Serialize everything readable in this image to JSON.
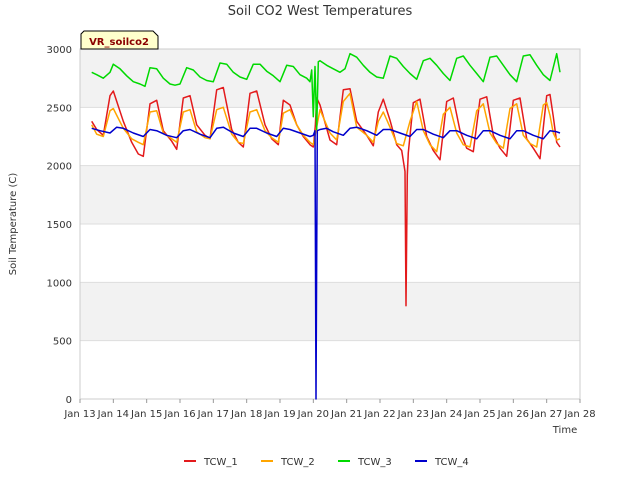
{
  "chart_data": {
    "type": "line",
    "title": "Soil CO2 West Temperatures",
    "xlabel": "Time",
    "ylabel": "Soil Temperature (C)",
    "badge": "VR_soilco2",
    "xlim": [
      13,
      28
    ],
    "ylim": [
      0,
      3000
    ],
    "y_ticks": [
      0,
      500,
      1000,
      1500,
      2000,
      2500,
      3000
    ],
    "x_ticks": [
      {
        "v": 13,
        "label": "Jan 13"
      },
      {
        "v": 14,
        "label": "Jan 14"
      },
      {
        "v": 15,
        "label": "Jan 15"
      },
      {
        "v": 16,
        "label": "Jan 16"
      },
      {
        "v": 17,
        "label": "Jan 17"
      },
      {
        "v": 18,
        "label": "Jan 18"
      },
      {
        "v": 19,
        "label": "Jan 19"
      },
      {
        "v": 20,
        "label": "Jan 20"
      },
      {
        "v": 21,
        "label": "Jan 21"
      },
      {
        "v": 22,
        "label": "Jan 22"
      },
      {
        "v": 23,
        "label": "Jan 23"
      },
      {
        "v": 24,
        "label": "Jan 24"
      },
      {
        "v": 25,
        "label": "Jan 25"
      },
      {
        "v": 26,
        "label": "Jan 26"
      },
      {
        "v": 27,
        "label": "Jan 27"
      },
      {
        "v": 28,
        "label": "Jan 28"
      }
    ],
    "grid": true,
    "legend_position": "bottom",
    "series": [
      {
        "name": "TCW_1",
        "color": "#e31a1c",
        "x": [
          13.35,
          13.5,
          13.7,
          13.9,
          14.0,
          14.3,
          14.55,
          14.75,
          14.9,
          15.1,
          15.3,
          15.5,
          15.75,
          15.9,
          16.1,
          16.3,
          16.5,
          16.75,
          16.9,
          17.1,
          17.3,
          17.55,
          17.75,
          17.9,
          18.1,
          18.3,
          18.55,
          18.75,
          18.95,
          19.1,
          19.3,
          19.5,
          19.7,
          19.9,
          20.0,
          20.06,
          20.1,
          20.2,
          20.5,
          20.7,
          20.9,
          21.1,
          21.3,
          21.6,
          21.8,
          21.95,
          22.1,
          22.3,
          22.5,
          22.65,
          22.75,
          22.78,
          22.82,
          22.85,
          23.0,
          23.2,
          23.4,
          23.6,
          23.8,
          24.0,
          24.2,
          24.4,
          24.6,
          24.8,
          25.0,
          25.2,
          25.4,
          25.6,
          25.8,
          26.0,
          26.2,
          26.4,
          26.6,
          26.8,
          27.0,
          27.1,
          27.2,
          27.3,
          27.4
        ],
        "y": [
          2380,
          2310,
          2260,
          2600,
          2640,
          2380,
          2200,
          2100,
          2080,
          2530,
          2560,
          2300,
          2210,
          2140,
          2580,
          2600,
          2350,
          2260,
          2230,
          2650,
          2670,
          2310,
          2200,
          2160,
          2620,
          2640,
          2350,
          2230,
          2180,
          2560,
          2520,
          2350,
          2250,
          2180,
          2160,
          2340,
          2580,
          2520,
          2220,
          2180,
          2650,
          2660,
          2380,
          2260,
          2170,
          2460,
          2570,
          2390,
          2180,
          2130,
          1950,
          800,
          1920,
          2110,
          2540,
          2570,
          2250,
          2130,
          2050,
          2550,
          2580,
          2300,
          2150,
          2120,
          2570,
          2590,
          2260,
          2150,
          2080,
          2560,
          2580,
          2230,
          2150,
          2060,
          2600,
          2610,
          2420,
          2200,
          2160
        ]
      },
      {
        "name": "TCW_2",
        "color": "#ffa500",
        "x": [
          13.35,
          13.5,
          13.7,
          13.9,
          14.0,
          14.3,
          14.55,
          14.75,
          14.9,
          15.1,
          15.3,
          15.5,
          15.75,
          15.9,
          16.1,
          16.3,
          16.5,
          16.75,
          16.9,
          17.1,
          17.3,
          17.55,
          17.75,
          17.9,
          18.1,
          18.3,
          18.55,
          18.75,
          18.95,
          19.1,
          19.3,
          19.5,
          19.7,
          19.9,
          20.0,
          20.2,
          20.5,
          20.7,
          20.9,
          21.1,
          21.3,
          21.6,
          21.8,
          21.95,
          22.1,
          22.3,
          22.5,
          22.7,
          22.9,
          23.1,
          23.3,
          23.5,
          23.7,
          23.9,
          24.1,
          24.3,
          24.5,
          24.7,
          24.9,
          25.1,
          25.3,
          25.5,
          25.7,
          25.9,
          26.1,
          26.3,
          26.5,
          26.7,
          26.9,
          27.0,
          27.1,
          27.2,
          27.3,
          27.4
        ],
        "y": [
          2350,
          2270,
          2250,
          2470,
          2490,
          2320,
          2230,
          2200,
          2180,
          2460,
          2470,
          2280,
          2230,
          2200,
          2460,
          2480,
          2290,
          2240,
          2230,
          2480,
          2500,
          2270,
          2200,
          2190,
          2460,
          2480,
          2300,
          2240,
          2200,
          2450,
          2480,
          2350,
          2260,
          2200,
          2180,
          2480,
          2280,
          2220,
          2550,
          2620,
          2330,
          2260,
          2200,
          2380,
          2460,
          2330,
          2190,
          2170,
          2380,
          2550,
          2300,
          2180,
          2120,
          2440,
          2500,
          2280,
          2180,
          2160,
          2470,
          2530,
          2280,
          2190,
          2150,
          2490,
          2530,
          2260,
          2190,
          2160,
          2520,
          2540,
          2430,
          2280,
          2220,
          2230
        ]
      },
      {
        "name": "TCW_3",
        "color": "#00d900",
        "x": [
          13.35,
          13.5,
          13.7,
          13.9,
          14.0,
          14.2,
          14.4,
          14.6,
          14.8,
          14.95,
          15.1,
          15.3,
          15.5,
          15.7,
          15.85,
          16.0,
          16.2,
          16.4,
          16.6,
          16.8,
          17.0,
          17.2,
          17.4,
          17.6,
          17.8,
          18.0,
          18.2,
          18.4,
          18.6,
          18.8,
          19.0,
          19.2,
          19.4,
          19.6,
          19.8,
          19.9,
          19.95,
          20.0,
          20.05,
          20.1,
          20.15,
          20.2,
          20.4,
          20.6,
          20.8,
          20.95,
          21.1,
          21.3,
          21.5,
          21.7,
          21.9,
          22.1,
          22.3,
          22.5,
          22.7,
          22.9,
          23.1,
          23.3,
          23.5,
          23.7,
          23.9,
          24.1,
          24.3,
          24.5,
          24.7,
          24.9,
          25.1,
          25.3,
          25.5,
          25.7,
          25.9,
          26.1,
          26.3,
          26.5,
          26.7,
          26.9,
          27.1,
          27.3,
          27.4
        ],
        "y": [
          2800,
          2780,
          2750,
          2800,
          2870,
          2830,
          2770,
          2720,
          2700,
          2680,
          2840,
          2830,
          2750,
          2700,
          2690,
          2700,
          2840,
          2820,
          2760,
          2730,
          2720,
          2880,
          2870,
          2800,
          2760,
          2740,
          2870,
          2870,
          2810,
          2770,
          2720,
          2860,
          2850,
          2780,
          2750,
          2720,
          2820,
          2420,
          2850,
          2310,
          2890,
          2900,
          2860,
          2830,
          2800,
          2830,
          2960,
          2930,
          2860,
          2800,
          2760,
          2750,
          2940,
          2920,
          2850,
          2790,
          2740,
          2900,
          2920,
          2860,
          2790,
          2730,
          2920,
          2940,
          2860,
          2790,
          2720,
          2930,
          2940,
          2860,
          2780,
          2720,
          2940,
          2950,
          2860,
          2780,
          2730,
          2960,
          2800
        ]
      },
      {
        "name": "TCW_4",
        "color": "#0000cc",
        "x": [
          13.35,
          13.6,
          13.9,
          14.1,
          14.3,
          14.6,
          14.9,
          15.1,
          15.3,
          15.6,
          15.9,
          16.1,
          16.3,
          16.6,
          16.9,
          17.1,
          17.3,
          17.6,
          17.9,
          18.1,
          18.3,
          18.6,
          18.9,
          19.1,
          19.3,
          19.6,
          19.9,
          20.0,
          20.05,
          20.08,
          20.12,
          20.2,
          20.4,
          20.6,
          20.9,
          21.1,
          21.3,
          21.6,
          21.9,
          22.1,
          22.3,
          22.6,
          22.9,
          23.1,
          23.3,
          23.6,
          23.9,
          24.1,
          24.3,
          24.6,
          24.9,
          25.1,
          25.3,
          25.6,
          25.9,
          26.1,
          26.3,
          26.6,
          26.9,
          27.1,
          27.3,
          27.4
        ],
        "y": [
          2320,
          2300,
          2280,
          2330,
          2320,
          2280,
          2250,
          2310,
          2300,
          2260,
          2240,
          2300,
          2310,
          2270,
          2240,
          2320,
          2330,
          2280,
          2250,
          2320,
          2320,
          2280,
          2250,
          2320,
          2310,
          2280,
          2250,
          2260,
          2300,
          0,
          2300,
          2310,
          2320,
          2290,
          2260,
          2320,
          2330,
          2300,
          2260,
          2310,
          2310,
          2280,
          2250,
          2310,
          2310,
          2270,
          2240,
          2300,
          2300,
          2260,
          2230,
          2300,
          2300,
          2260,
          2230,
          2300,
          2300,
          2260,
          2230,
          2300,
          2290,
          2280
        ]
      }
    ]
  }
}
